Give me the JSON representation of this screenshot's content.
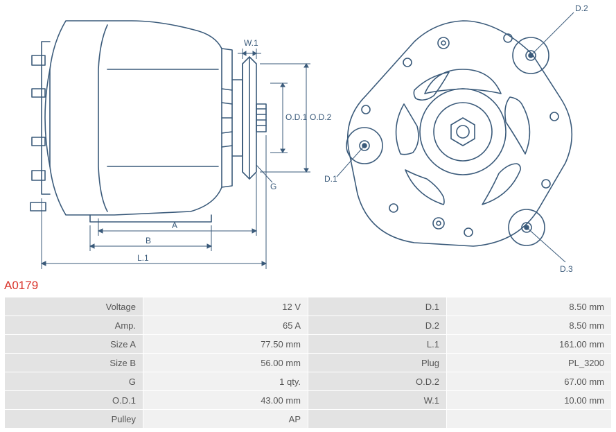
{
  "part_number": "A0179",
  "diagram": {
    "stroke_color": "#3a5a7a",
    "stroke_width": 1.6,
    "label_color": "#3a5a7a",
    "label_fontsize": 12,
    "left_view": {
      "labels": {
        "W1": "W.1",
        "OD1": "O.D.1",
        "OD2": "O.D.2",
        "G": "G",
        "A": "A",
        "B": "B",
        "L1": "L.1"
      }
    },
    "right_view": {
      "labels": {
        "D1": "D.1",
        "D2": "D.2",
        "D3": "D.3"
      }
    }
  },
  "specs": {
    "rows": [
      {
        "l1": "Voltage",
        "v1": "12 V",
        "l2": "D.1",
        "v2": "8.50 mm"
      },
      {
        "l1": "Amp.",
        "v1": "65 A",
        "l2": "D.2",
        "v2": "8.50 mm"
      },
      {
        "l1": "Size A",
        "v1": "77.50 mm",
        "l2": "L.1",
        "v2": "161.00 mm"
      },
      {
        "l1": "Size B",
        "v1": "56.00 mm",
        "l2": "Plug",
        "v2": "PL_3200"
      },
      {
        "l1": "G",
        "v1": "1 qty.",
        "l2": "O.D.2",
        "v2": "67.00 mm"
      },
      {
        "l1": "O.D.1",
        "v1": "43.00 mm",
        "l2": "W.1",
        "v2": "10.00 mm"
      },
      {
        "l1": "Pulley",
        "v1": "AP",
        "l2": "",
        "v2": ""
      }
    ],
    "colors": {
      "label_bg": "#e3e3e3",
      "value_bg": "#f1f1f1",
      "border": "#ffffff",
      "text": "#555555"
    }
  },
  "colors": {
    "part_number": "#d9332a",
    "background": "#ffffff"
  }
}
